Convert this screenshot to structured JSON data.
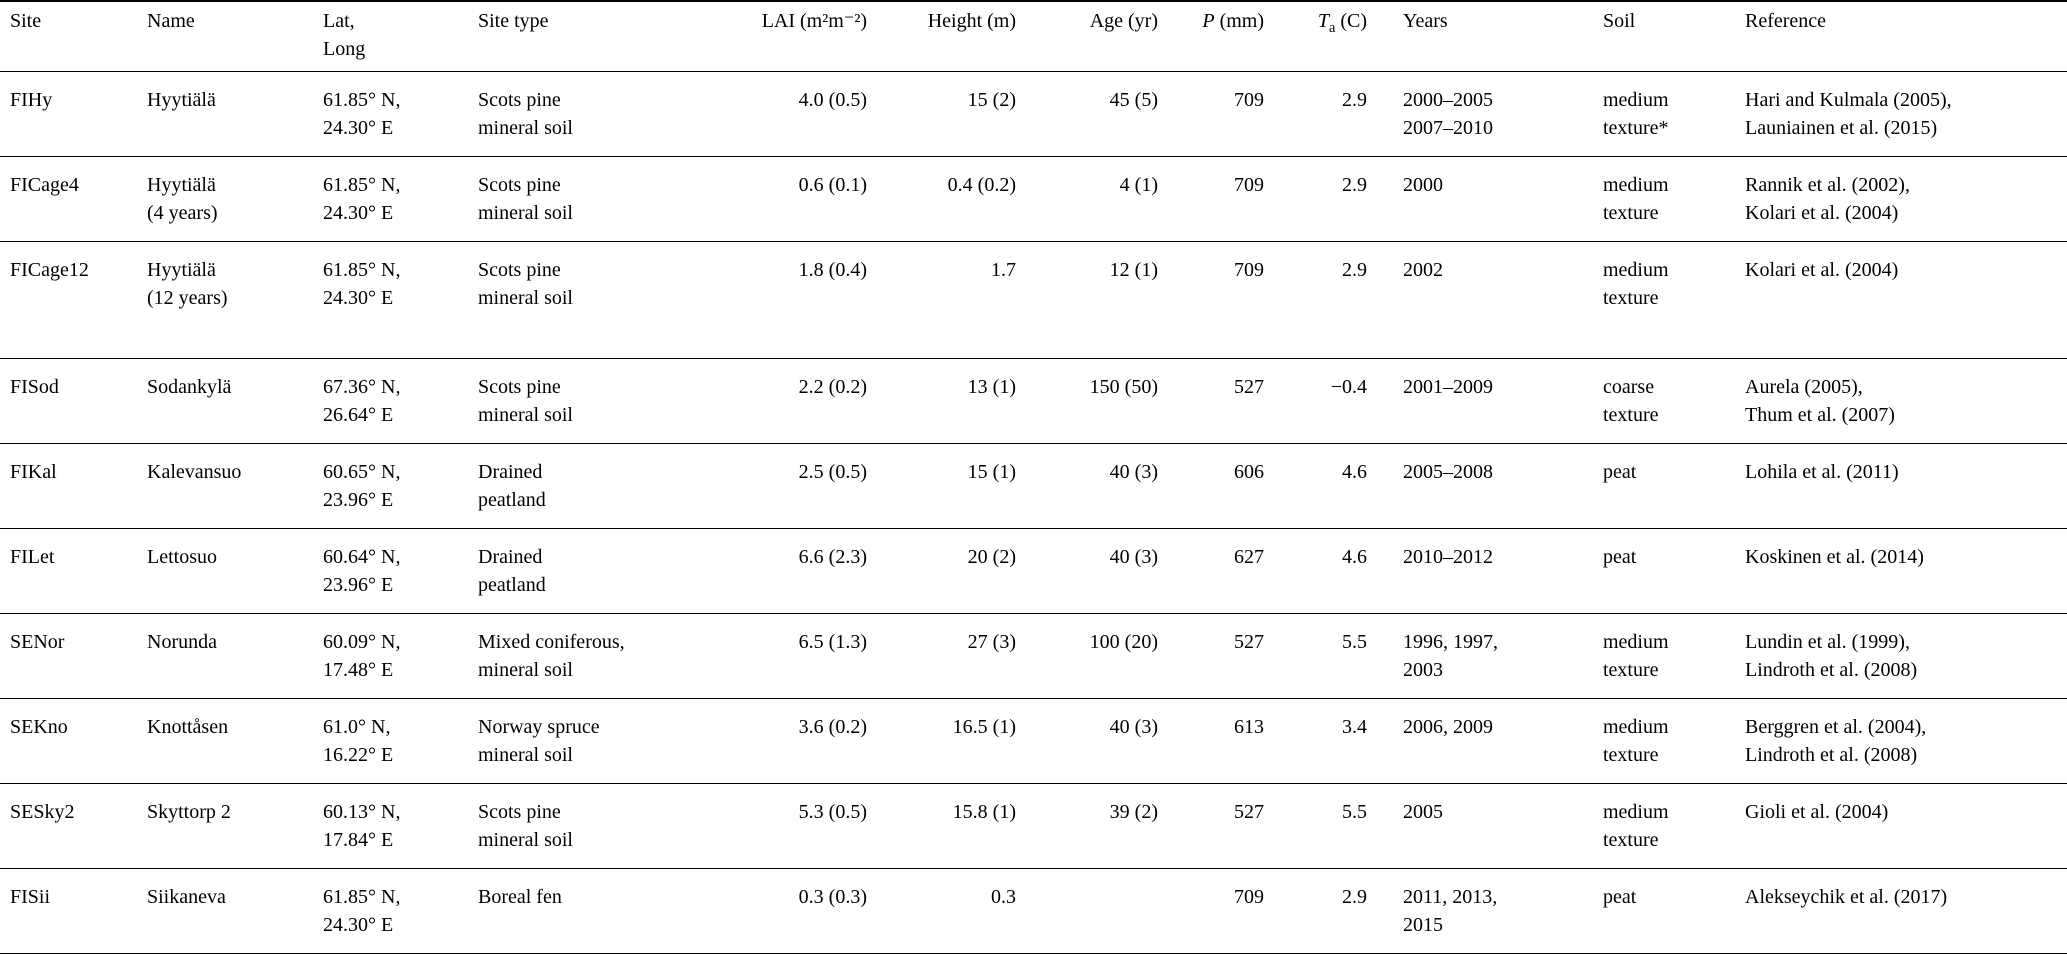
{
  "page": {
    "background": "#ffffff",
    "text_color": "#000000"
  },
  "table": {
    "columns": [
      {
        "id": "site",
        "label": "Site",
        "align": "left"
      },
      {
        "id": "name",
        "label": "Name",
        "align": "left"
      },
      {
        "id": "latlong",
        "lines": [
          "Lat,",
          "Long"
        ],
        "align": "left"
      },
      {
        "id": "sitetype",
        "label": "Site type",
        "align": "left"
      },
      {
        "id": "lai",
        "label": "LAI (m²m⁻²)",
        "align": "right"
      },
      {
        "id": "height",
        "label": "Height (m)",
        "align": "right"
      },
      {
        "id": "age",
        "label": "Age (yr)",
        "align": "right"
      },
      {
        "id": "p",
        "symbol": "P",
        "label": "(mm)",
        "align": "right",
        "italic": true
      },
      {
        "id": "ta",
        "symbol": "T",
        "subscript": "a",
        "label": "(C)",
        "align": "right",
        "italic": true
      },
      {
        "id": "years",
        "label": "Years",
        "align": "left"
      },
      {
        "id": "soil",
        "label": "Soil",
        "align": "left"
      },
      {
        "id": "reference",
        "label": "Reference",
        "align": "left"
      }
    ],
    "rows": [
      {
        "site": "FIHy",
        "name": [
          "Hyytiälä"
        ],
        "latlong": [
          "61.85° N,",
          "24.30° E"
        ],
        "sitetype": [
          "Scots pine",
          "mineral soil"
        ],
        "lai": "4.0 (0.5)",
        "height": "15 (2)",
        "age": "45 (5)",
        "p": "709",
        "ta": "2.9",
        "years": [
          "2000–2005",
          "2007–2010"
        ],
        "soil": [
          "medium",
          "texture*"
        ],
        "reference": [
          "Hari and Kulmala (2005),",
          "Launiainen et al. (2015)"
        ]
      },
      {
        "site": "FICage4",
        "name": [
          "Hyytiälä",
          "(4 years)"
        ],
        "latlong": [
          "61.85° N,",
          "24.30° E"
        ],
        "sitetype": [
          "Scots pine",
          "mineral soil"
        ],
        "lai": "0.6 (0.1)",
        "height": "0.4 (0.2)",
        "age": "4 (1)",
        "p": "709",
        "ta": "2.9",
        "years": [
          "2000"
        ],
        "soil": [
          "medium",
          "texture"
        ],
        "reference": [
          "Rannik et al. (2002),",
          "Kolari et al. (2004)"
        ]
      },
      {
        "site": "FICage12",
        "name": [
          "Hyytiälä",
          "(12 years)"
        ],
        "latlong": [
          "61.85° N,",
          "24.30° E"
        ],
        "sitetype": [
          "Scots pine",
          "mineral soil"
        ],
        "lai": "1.8 (0.4)",
        "height": "1.7",
        "age": "12 (1)",
        "p": "709",
        "ta": "2.9",
        "years": [
          "2002"
        ],
        "soil": [
          "medium",
          "texture"
        ],
        "reference": [
          "Kolari et al. (2004)"
        ]
      },
      {
        "site": "FISod",
        "name": [
          "Sodankylä"
        ],
        "latlong": [
          "67.36° N,",
          "26.64° E"
        ],
        "sitetype": [
          "Scots pine",
          "mineral soil"
        ],
        "lai": "2.2 (0.2)",
        "height": "13 (1)",
        "age": "150 (50)",
        "p": "527",
        "ta": "−0.4",
        "years": [
          "2001–2009"
        ],
        "soil": [
          "coarse",
          "texture"
        ],
        "reference": [
          "Aurela (2005),",
          "Thum et al. (2007)"
        ]
      },
      {
        "site": "FIKal",
        "name": [
          "Kalevansuo"
        ],
        "latlong": [
          "60.65° N,",
          "23.96° E"
        ],
        "sitetype": [
          "Drained",
          "peatland"
        ],
        "lai": "2.5 (0.5)",
        "height": "15 (1)",
        "age": "40 (3)",
        "p": "606",
        "ta": "4.6",
        "years": [
          "2005–2008"
        ],
        "soil": [
          "peat"
        ],
        "reference": [
          "Lohila et al. (2011)"
        ]
      },
      {
        "site": "FILet",
        "name": [
          "Lettosuo"
        ],
        "latlong": [
          "60.64° N,",
          "23.96° E"
        ],
        "sitetype": [
          "Drained",
          "peatland"
        ],
        "lai": "6.6 (2.3)",
        "height": "20 (2)",
        "age": "40 (3)",
        "p": "627",
        "ta": "4.6",
        "years": [
          "2010–2012"
        ],
        "soil": [
          "peat"
        ],
        "reference": [
          "Koskinen et al. (2014)"
        ]
      },
      {
        "site": "SENor",
        "name": [
          "Norunda"
        ],
        "latlong": [
          "60.09° N,",
          "17.48° E"
        ],
        "sitetype": [
          "Mixed coniferous,",
          "mineral soil"
        ],
        "lai": "6.5 (1.3)",
        "height": "27 (3)",
        "age": "100 (20)",
        "p": "527",
        "ta": "5.5",
        "years": [
          "1996, 1997,",
          "2003"
        ],
        "soil": [
          "medium",
          "texture"
        ],
        "reference": [
          "Lundin et al. (1999),",
          "Lindroth et al. (2008)"
        ]
      },
      {
        "site": "SEKno",
        "name": [
          "Knottåsen"
        ],
        "latlong": [
          "61.0° N,",
          "16.22° E"
        ],
        "sitetype": [
          "Norway spruce",
          "mineral soil"
        ],
        "lai": "3.6 (0.2)",
        "height": "16.5 (1)",
        "age": "40 (3)",
        "p": "613",
        "ta": "3.4",
        "years": [
          "2006, 2009"
        ],
        "soil": [
          "medium",
          "texture"
        ],
        "reference": [
          "Berggren et al. (2004),",
          "Lindroth et al. (2008)"
        ]
      },
      {
        "site": "SESky2",
        "name": [
          "Skyttorp 2"
        ],
        "latlong": [
          "60.13° N,",
          "17.84° E"
        ],
        "sitetype": [
          "Scots pine",
          "mineral soil"
        ],
        "lai": "5.3 (0.5)",
        "height": "15.8 (1)",
        "age": "39 (2)",
        "p": "527",
        "ta": "5.5",
        "years": [
          "2005"
        ],
        "soil": [
          "medium",
          "texture"
        ],
        "reference": [
          "Gioli et al. (2004)"
        ]
      },
      {
        "site": "FISii",
        "name": [
          "Siikaneva"
        ],
        "latlong": [
          "61.85° N,",
          "24.30° E"
        ],
        "sitetype": [
          "Boreal fen"
        ],
        "lai": "0.3 (0.3)",
        "height": "0.3",
        "age": "",
        "p": "709",
        "ta": "2.9",
        "years": [
          "2011, 2013,",
          "2015"
        ],
        "soil": [
          "peat"
        ],
        "reference": [
          "Alekseychik et al. (2017)"
        ]
      }
    ]
  }
}
